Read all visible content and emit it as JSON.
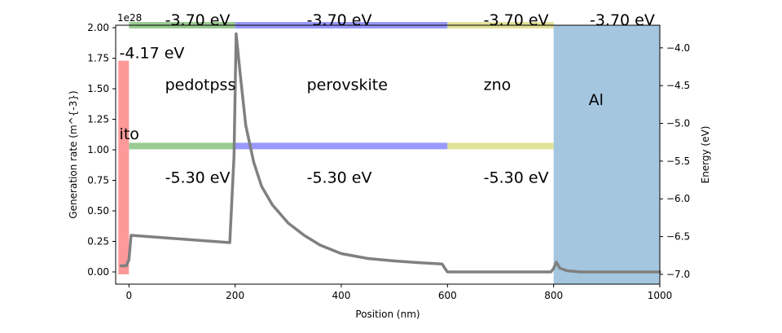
{
  "chart_data": {
    "type": "line",
    "xlabel": "Position (nm)",
    "ylabel": "Generation rate (m^{-3})",
    "y2label": "Energy (eV)",
    "offset_text": "1e28",
    "xlim": [
      -25,
      1000
    ],
    "ylim": [
      -0.1,
      2.02
    ],
    "y2lim": [
      -7.13,
      -3.7
    ],
    "x_ticks": [
      0,
      200,
      400,
      600,
      800,
      1000
    ],
    "x_tick_labels": [
      "0",
      "200",
      "400",
      "600",
      "800",
      "1000"
    ],
    "y_ticks": [
      0.0,
      0.25,
      0.5,
      0.75,
      1.0,
      1.25,
      1.5,
      1.75,
      2.0
    ],
    "y_tick_labels": [
      "0.00",
      "0.25",
      "0.50",
      "0.75",
      "1.00",
      "1.25",
      "1.50",
      "1.75",
      "2.00"
    ],
    "y2_ticks": [
      -4.0,
      -4.5,
      -5.0,
      -5.5,
      -6.0,
      -6.5,
      -7.0
    ],
    "y2_tick_labels": [
      "−4.0",
      "−4.5",
      "−5.0",
      "−5.5",
      "−6.0",
      "−6.5",
      "−7.0"
    ],
    "generation_series": {
      "x": [
        -15,
        -5,
        0,
        4,
        190,
        198,
        202,
        210,
        220,
        235,
        250,
        270,
        300,
        330,
        360,
        400,
        450,
        500,
        550,
        590,
        595,
        600,
        700,
        795,
        800,
        805,
        812,
        825,
        850,
        900,
        1000
      ],
      "y": [
        0.05,
        0.05,
        0.1,
        0.3,
        0.24,
        0.95,
        1.95,
        1.6,
        1.2,
        0.9,
        0.7,
        0.55,
        0.4,
        0.3,
        0.22,
        0.15,
        0.11,
        0.09,
        0.075,
        0.065,
        0.03,
        0.0,
        0.0,
        0.0,
        0.03,
        0.08,
        0.03,
        0.01,
        0.0,
        0.0,
        0.0
      ],
      "color": "#808080"
    },
    "layers": [
      {
        "name": "ito",
        "x0": -20,
        "x1": 0,
        "lumo": -4.17,
        "homo": -7.0,
        "color": "#ff9999",
        "kind": "block",
        "label": "ito",
        "label_x": -18,
        "label_y": -5.15
      },
      {
        "name": "pedotpss",
        "x0": 0,
        "x1": 200,
        "lumo": -3.7,
        "homo": -5.3,
        "color": "#9acb92",
        "kind": "bands",
        "label": "pedotpss",
        "label_x": 68,
        "label_y": -4.5
      },
      {
        "name": "perovskite",
        "x0": 200,
        "x1": 600,
        "lumo": -3.7,
        "homo": -5.3,
        "color": "#9999ff",
        "kind": "bands",
        "label": "perovskite",
        "label_x": 335,
        "label_y": -4.5
      },
      {
        "name": "zno",
        "x0": 600,
        "x1": 800,
        "lumo": -3.7,
        "homo": -5.3,
        "color": "#e2e29a",
        "kind": "bands",
        "label": "zno",
        "label_x": 668,
        "label_y": -4.5
      },
      {
        "name": "Al",
        "x0": 800,
        "x1": 1000,
        "lumo": -3.7,
        "homo": -7.13,
        "color": "#a4c6df",
        "kind": "block",
        "label": "Al",
        "label_x": 866,
        "label_y": -4.7
      }
    ],
    "energy_labels": [
      {
        "text": "-3.70 eV",
        "x": 68,
        "e": -3.64
      },
      {
        "text": "-3.70 eV",
        "x": 335,
        "e": -3.64
      },
      {
        "text": "-3.70 eV",
        "x": 668,
        "e": -3.64
      },
      {
        "text": "-3.70 eV",
        "x": 868,
        "e": -3.64
      },
      {
        "text": "-4.17 eV",
        "x": -18,
        "e": -4.08
      },
      {
        "text": "-5.30 eV",
        "x": 68,
        "e": -5.73
      },
      {
        "text": "-5.30 eV",
        "x": 335,
        "e": -5.73
      },
      {
        "text": "-5.30 eV",
        "x": 668,
        "e": -5.73
      }
    ]
  }
}
